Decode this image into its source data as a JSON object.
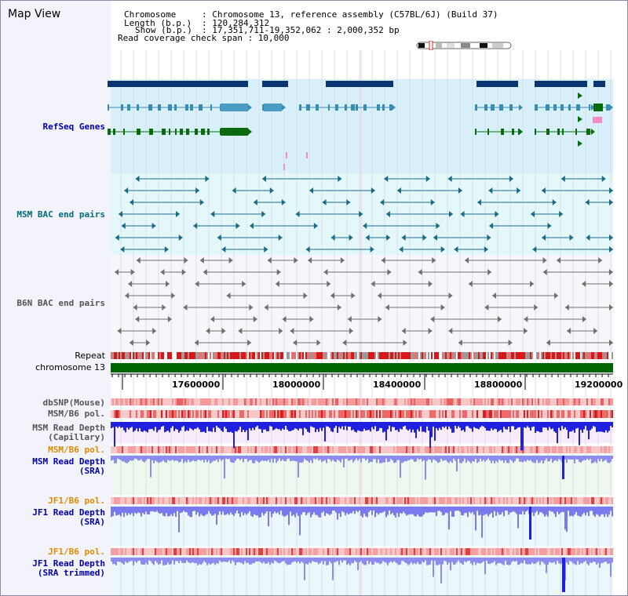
{
  "title": "Map View",
  "header": {
    "chromosome_key": "Chromosome",
    "chromosome_val": ": Chromosome 13, reference assembly (C57BL/6J) (Build 37)",
    "length_key": "Length (b.p.)",
    "length_val": ": 120,284,312",
    "show_key": "Show (b.p.)",
    "show_val": ": 17,351,711-19,352,062 : 2,000,352 bp",
    "coverage": "Read coverage check span : 10,000"
  },
  "tracks": {
    "refseq": "RefSeq Genes",
    "msm_bac": "MSM BAC end pairs",
    "b6n_bac": "B6N BAC end pairs",
    "repeat": "Repeat",
    "chromosome": "chromosome 13",
    "dbsnp": "dbSNP(Mouse)",
    "msm_pol": "MSM/B6 pol.",
    "msm_depth_cap_1": "MSM Read Depth",
    "msm_depth_cap_2": "(Capillary)",
    "msm_pol2": "MSM/B6 pol.",
    "msm_depth_sra_1": "MSM Read Depth",
    "msm_depth_sra_2": "(SRA)",
    "jf1_pol": "JF1/B6 pol.",
    "jf1_depth_sra_1": "JF1 Read Depth",
    "jf1_depth_sra_2": "(SRA)",
    "jf1_pol2": "JF1/B6 pol.",
    "jf1_depth_trim_1": "JF1 Read Depth",
    "jf1_depth_trim_2": "(SRA trimmed)"
  },
  "axis_ticks": [
    "17600000",
    "18000000",
    "18400000",
    "18800000",
    "19200000"
  ],
  "colors": {
    "refseq_bg": "#d8f0fa",
    "msm_bac_bg": "#e4f8fa",
    "chromosome": "#006400",
    "depth_blue": "#1a1ae0",
    "pol_red": "#e03030",
    "label_blue": "#0000aa",
    "label_orange": "#e08a00",
    "label_teal": "#006b78",
    "label_gray": "#555555"
  }
}
